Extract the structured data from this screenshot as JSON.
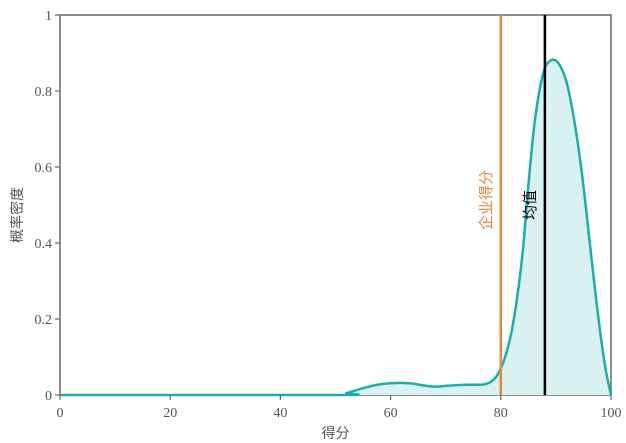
{
  "chart_data": {
    "type": "area",
    "xlabel": "得分",
    "ylabel": "概率密度",
    "xlim": [
      0,
      100
    ],
    "ylim": [
      0,
      1
    ],
    "x_ticks": [
      "0",
      "20",
      "40",
      "60",
      "80",
      "100"
    ],
    "y_ticks": [
      "0",
      "0.2",
      "0.4",
      "0.6",
      "0.8",
      "1"
    ],
    "x_tick_values": [
      0,
      20,
      40,
      60,
      80,
      100
    ],
    "y_tick_values": [
      0,
      0.2,
      0.4,
      0.6,
      0.8,
      1
    ],
    "grid": false,
    "series": [
      {
        "x": [
          0,
          50,
          52,
          55,
          58,
          60,
          62,
          64,
          66,
          68,
          70,
          72,
          74,
          76,
          77,
          78,
          79,
          80,
          81,
          82,
          83,
          84,
          85,
          86,
          87,
          88,
          89,
          90,
          91,
          92,
          93,
          94,
          95,
          96,
          97,
          98,
          99,
          100
        ],
        "y": [
          0,
          0,
          0.005,
          0.018,
          0.028,
          0.031,
          0.032,
          0.03,
          0.025,
          0.022,
          0.024,
          0.026,
          0.027,
          0.027,
          0.028,
          0.033,
          0.045,
          0.07,
          0.11,
          0.17,
          0.26,
          0.38,
          0.55,
          0.7,
          0.8,
          0.86,
          0.88,
          0.88,
          0.86,
          0.82,
          0.75,
          0.66,
          0.55,
          0.42,
          0.29,
          0.17,
          0.07,
          0
        ],
        "color": "#1aafa8",
        "fill": "#d9f1f0"
      }
    ],
    "vlines": [
      {
        "x": 80,
        "label": "企业得分",
        "color": "#e08a3c"
      },
      {
        "x": 88,
        "label": "均值",
        "color": "#000000"
      }
    ]
  }
}
